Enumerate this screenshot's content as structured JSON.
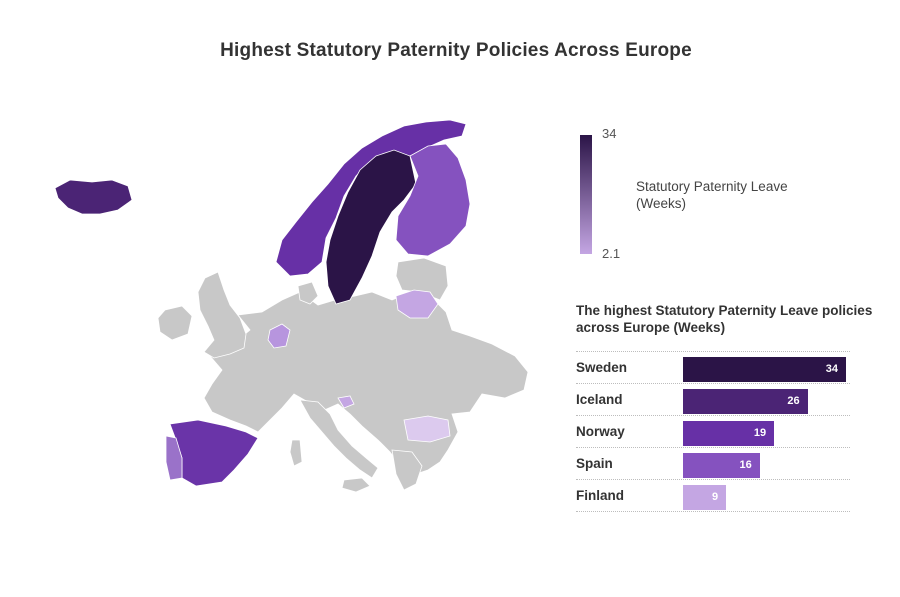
{
  "title": "Highest Statutory Paternity Policies Across Europe",
  "legend": {
    "max_label": "34",
    "min_label": "2.1",
    "title": "Statutory Paternity Leave (Weeks)",
    "color_high": "#2b1447",
    "color_low": "#c4a6e3"
  },
  "bar_chart": {
    "title": "The highest Statutory Paternity Leave policies across Europe (Weeks)",
    "max": 34,
    "rows": [
      {
        "label": "Sweden",
        "value": 34,
        "value_label": "34",
        "color": "#2b1447"
      },
      {
        "label": "Iceland",
        "value": 26,
        "value_label": "26",
        "color": "#4b2475"
      },
      {
        "label": "Norway",
        "value": 19,
        "value_label": "19",
        "color": "#6730a6"
      },
      {
        "label": "Spain",
        "value": 16,
        "value_label": "16",
        "color": "#8552bf"
      },
      {
        "label": "Finland",
        "value": 9,
        "value_label": "9",
        "color": "#c4a6e3"
      }
    ]
  },
  "map_colors": {
    "no_data": "#c8c8c8",
    "sweden": "#2b1447",
    "iceland": "#4b2475",
    "norway": "#6730a6",
    "spain": "#6a34a8",
    "finland": "#8552bf",
    "portugal": "#9a72c9",
    "lithuania": "#c4a6e3",
    "netherlands": "#b795de",
    "slovenia": "#c4a6e3",
    "bulgaria": "#dccaee"
  }
}
